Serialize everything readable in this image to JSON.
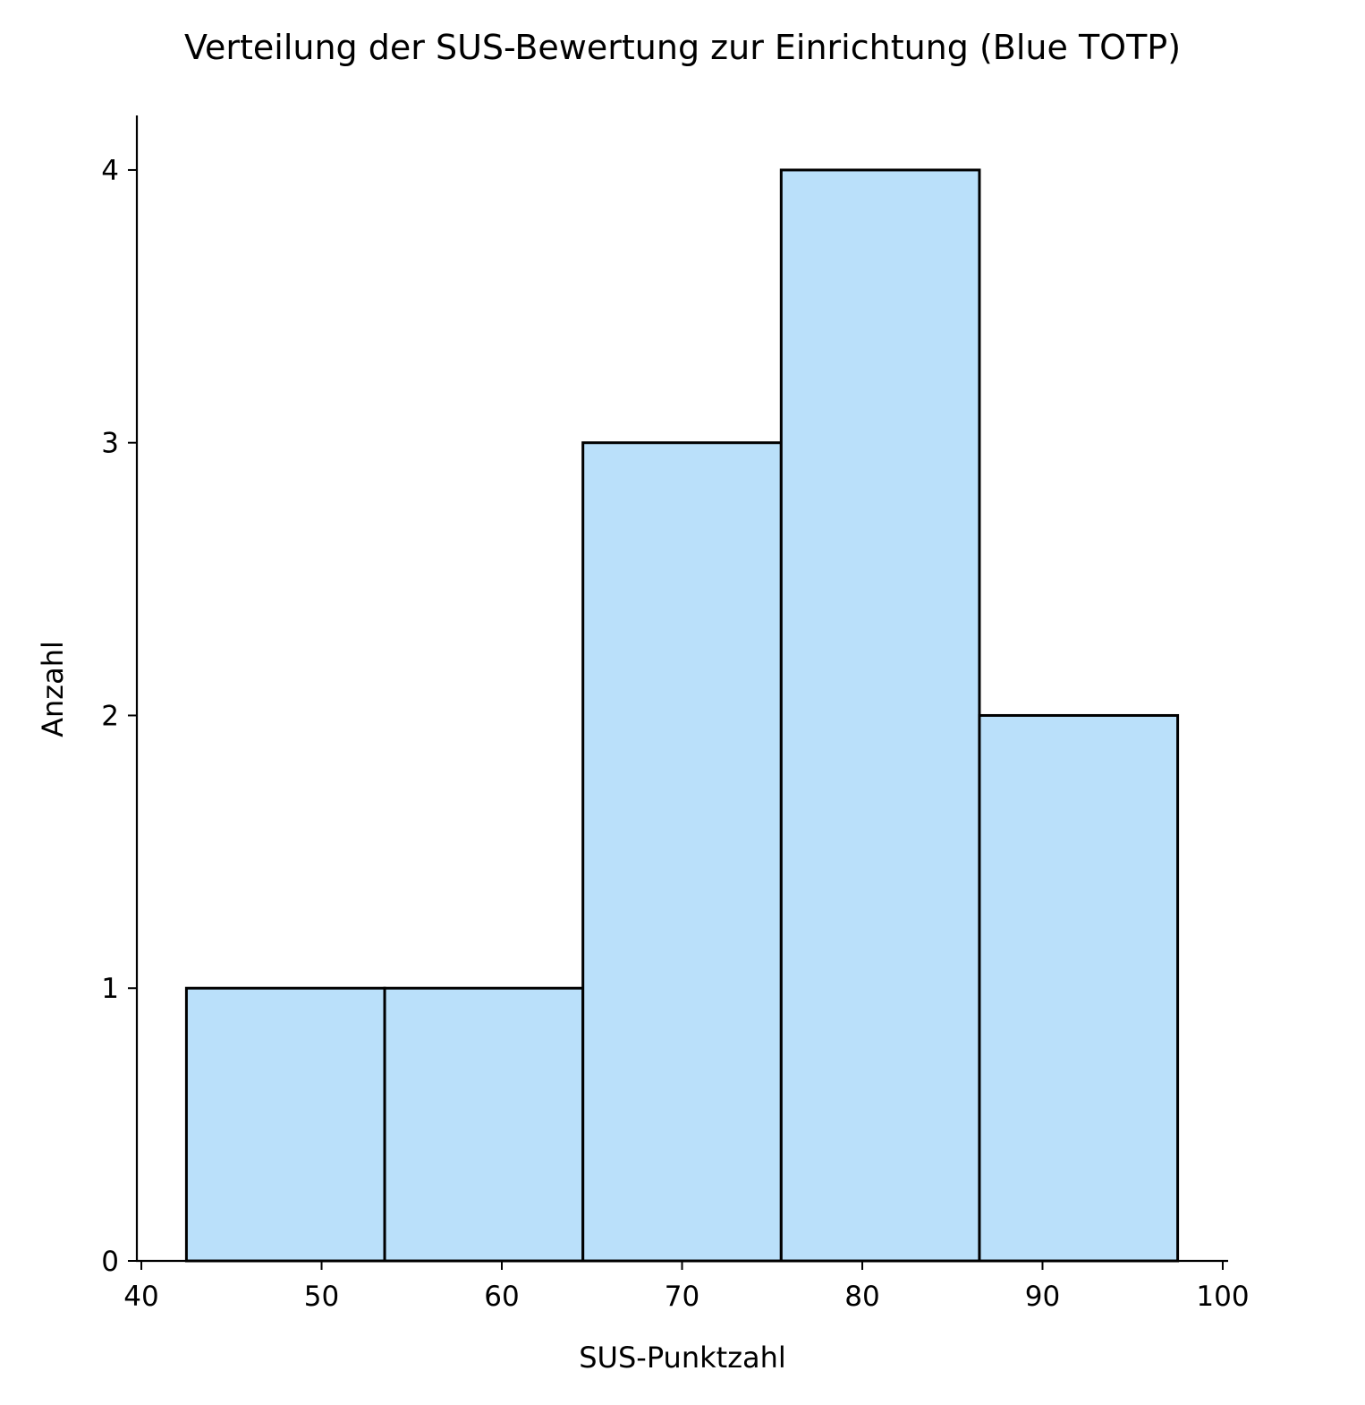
{
  "chart_data": {
    "type": "bar",
    "title": "Verteilung der SUS-Bewertung zur Einrichtung (Blue TOTP)",
    "xlabel": "SUS-Punktzahl",
    "ylabel": "Anzahl",
    "bins": [
      {
        "start": 42.5,
        "end": 53.5,
        "count": 1
      },
      {
        "start": 53.5,
        "end": 64.5,
        "count": 1
      },
      {
        "start": 64.5,
        "end": 75.5,
        "count": 3
      },
      {
        "start": 75.5,
        "end": 86.5,
        "count": 4
      },
      {
        "start": 86.5,
        "end": 97.5,
        "count": 2
      }
    ],
    "xlim": [
      39.75,
      100.25
    ],
    "ylim": [
      0,
      4.2
    ],
    "xticks": [
      40,
      50,
      60,
      70,
      80,
      90,
      100
    ],
    "yticks": [
      0,
      1,
      2,
      3,
      4
    ],
    "grid": false,
    "bar_color": "#bae0fa",
    "edge_color": "#000000"
  }
}
